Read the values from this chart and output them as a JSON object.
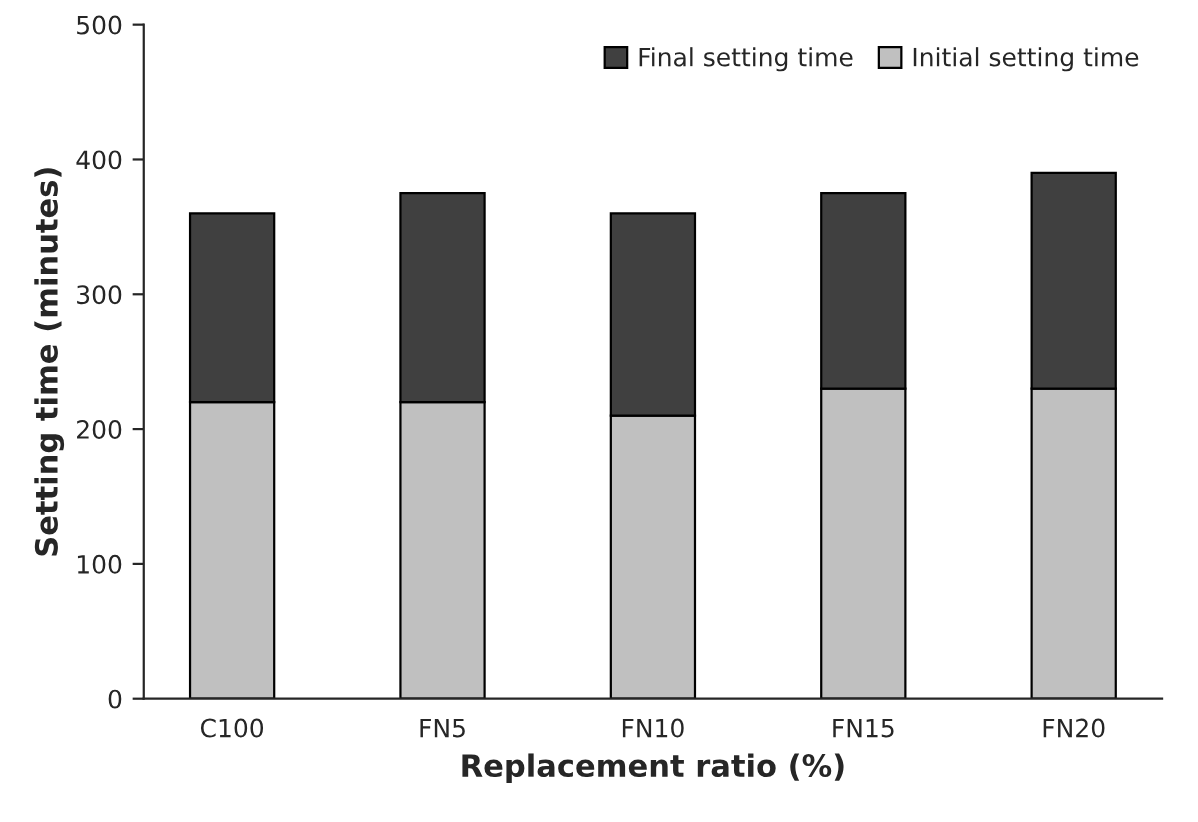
{
  "chart_data": {
    "type": "bar",
    "stacked": true,
    "xlabel": "Replacement ratio (%)",
    "ylabel": "Setting time (minutes)",
    "categories": [
      "C100",
      "FN5",
      "FN10",
      "FN15",
      "FN20"
    ],
    "series": [
      {
        "name": "Initial setting time",
        "color": "#c0c0c0",
        "values": [
          220,
          220,
          210,
          230,
          230
        ]
      },
      {
        "name": "Final setting time",
        "color": "#404040",
        "values": [
          140,
          155,
          150,
          145,
          160
        ]
      }
    ],
    "ylim": [
      0,
      500
    ],
    "yticks": [
      0,
      100,
      200,
      300,
      400,
      500
    ],
    "grid": false,
    "legend": "top right"
  }
}
